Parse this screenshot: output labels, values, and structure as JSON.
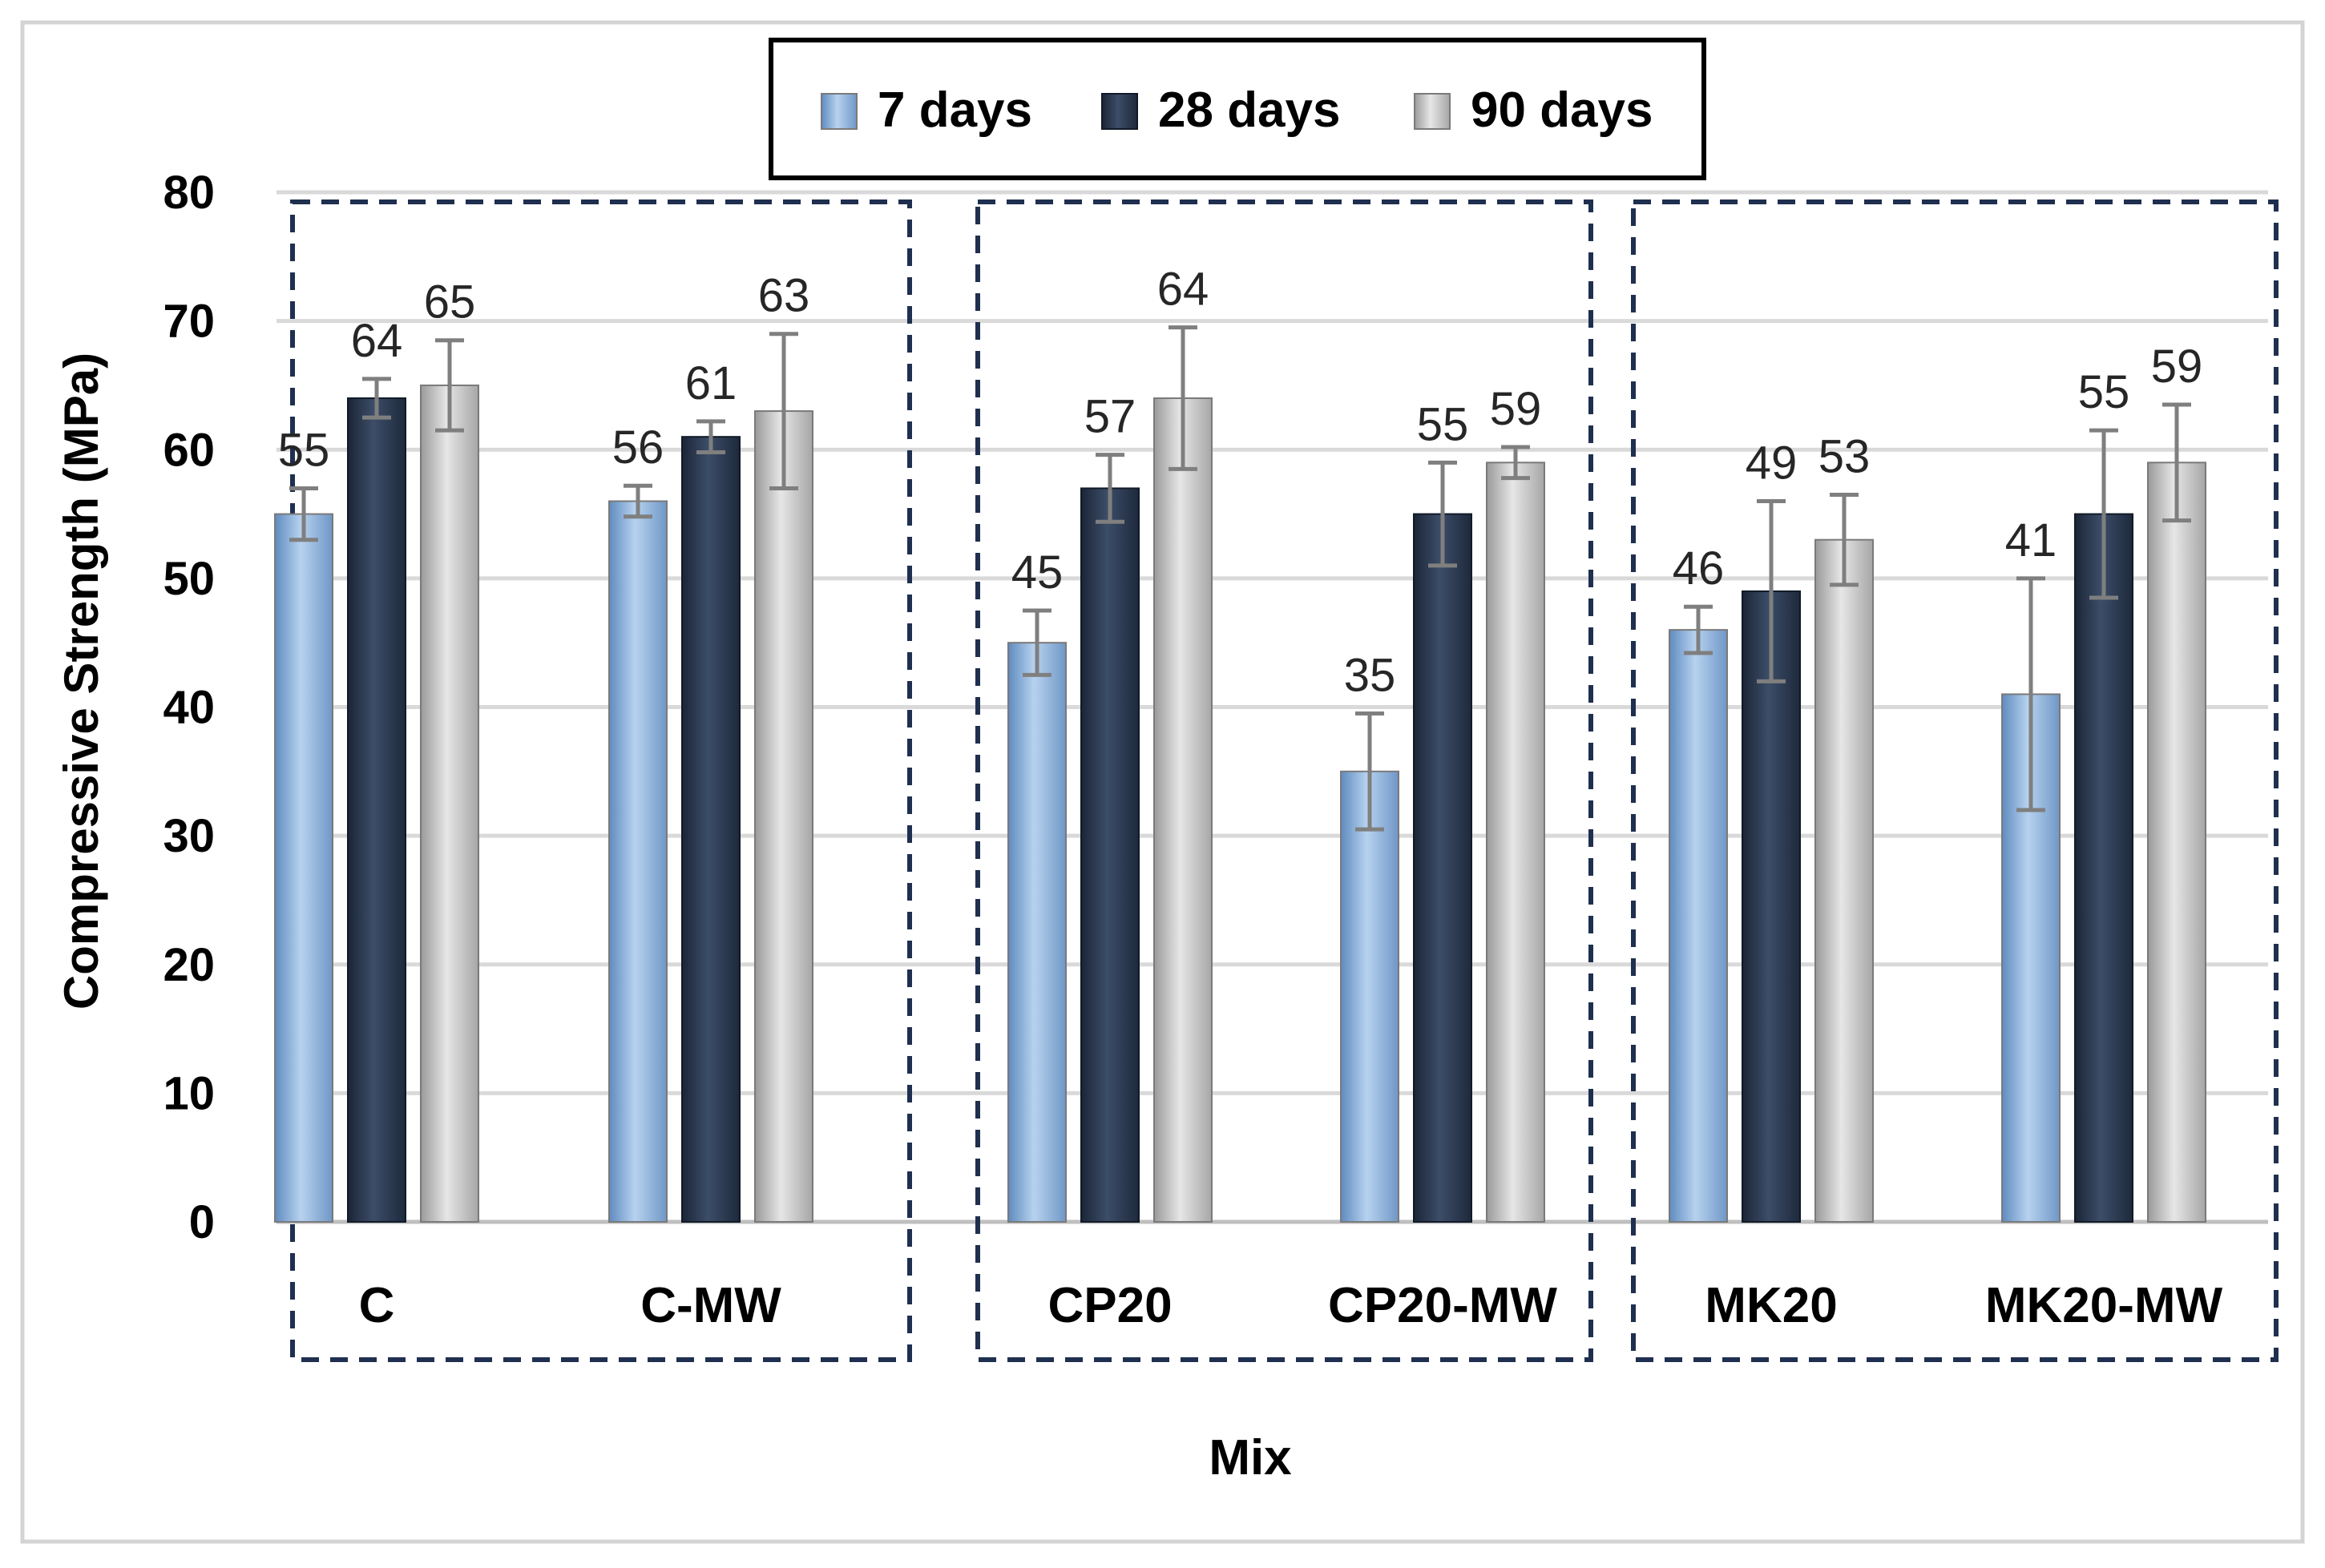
{
  "chart_data": {
    "type": "bar",
    "title": "",
    "xlabel": "Mix",
    "ylabel": "Compressive Strength (MPa)",
    "ylim": [
      0,
      80
    ],
    "yticks": [
      0,
      10,
      20,
      30,
      40,
      50,
      60,
      70,
      80
    ],
    "grid": true,
    "legend_position": "top-center",
    "categories": [
      "C",
      "C-MW",
      "CP20",
      "CP20-MW",
      "MK20",
      "MK20-MW"
    ],
    "series": [
      {
        "name": "7 days",
        "color": "#8fb4dc",
        "values": [
          55,
          56,
          45,
          35,
          46,
          41
        ],
        "errors": [
          2,
          1.2,
          2.5,
          4.5,
          1.8,
          9
        ]
      },
      {
        "name": "28 days",
        "color": "#2b3a52",
        "values": [
          64,
          61,
          57,
          55,
          49,
          55
        ],
        "errors": [
          1.5,
          1.2,
          2.6,
          4,
          7,
          6.5
        ]
      },
      {
        "name": "90 days",
        "color": "#bdbdbd",
        "values": [
          65,
          63,
          64,
          59,
          53,
          59
        ],
        "errors": [
          3.5,
          6,
          5.5,
          1.2,
          3.5,
          4.5
        ]
      }
    ],
    "group_boxes": [
      [
        "C",
        "C-MW"
      ],
      [
        "CP20",
        "CP20-MW"
      ],
      [
        "MK20",
        "MK20-MW"
      ]
    ]
  }
}
